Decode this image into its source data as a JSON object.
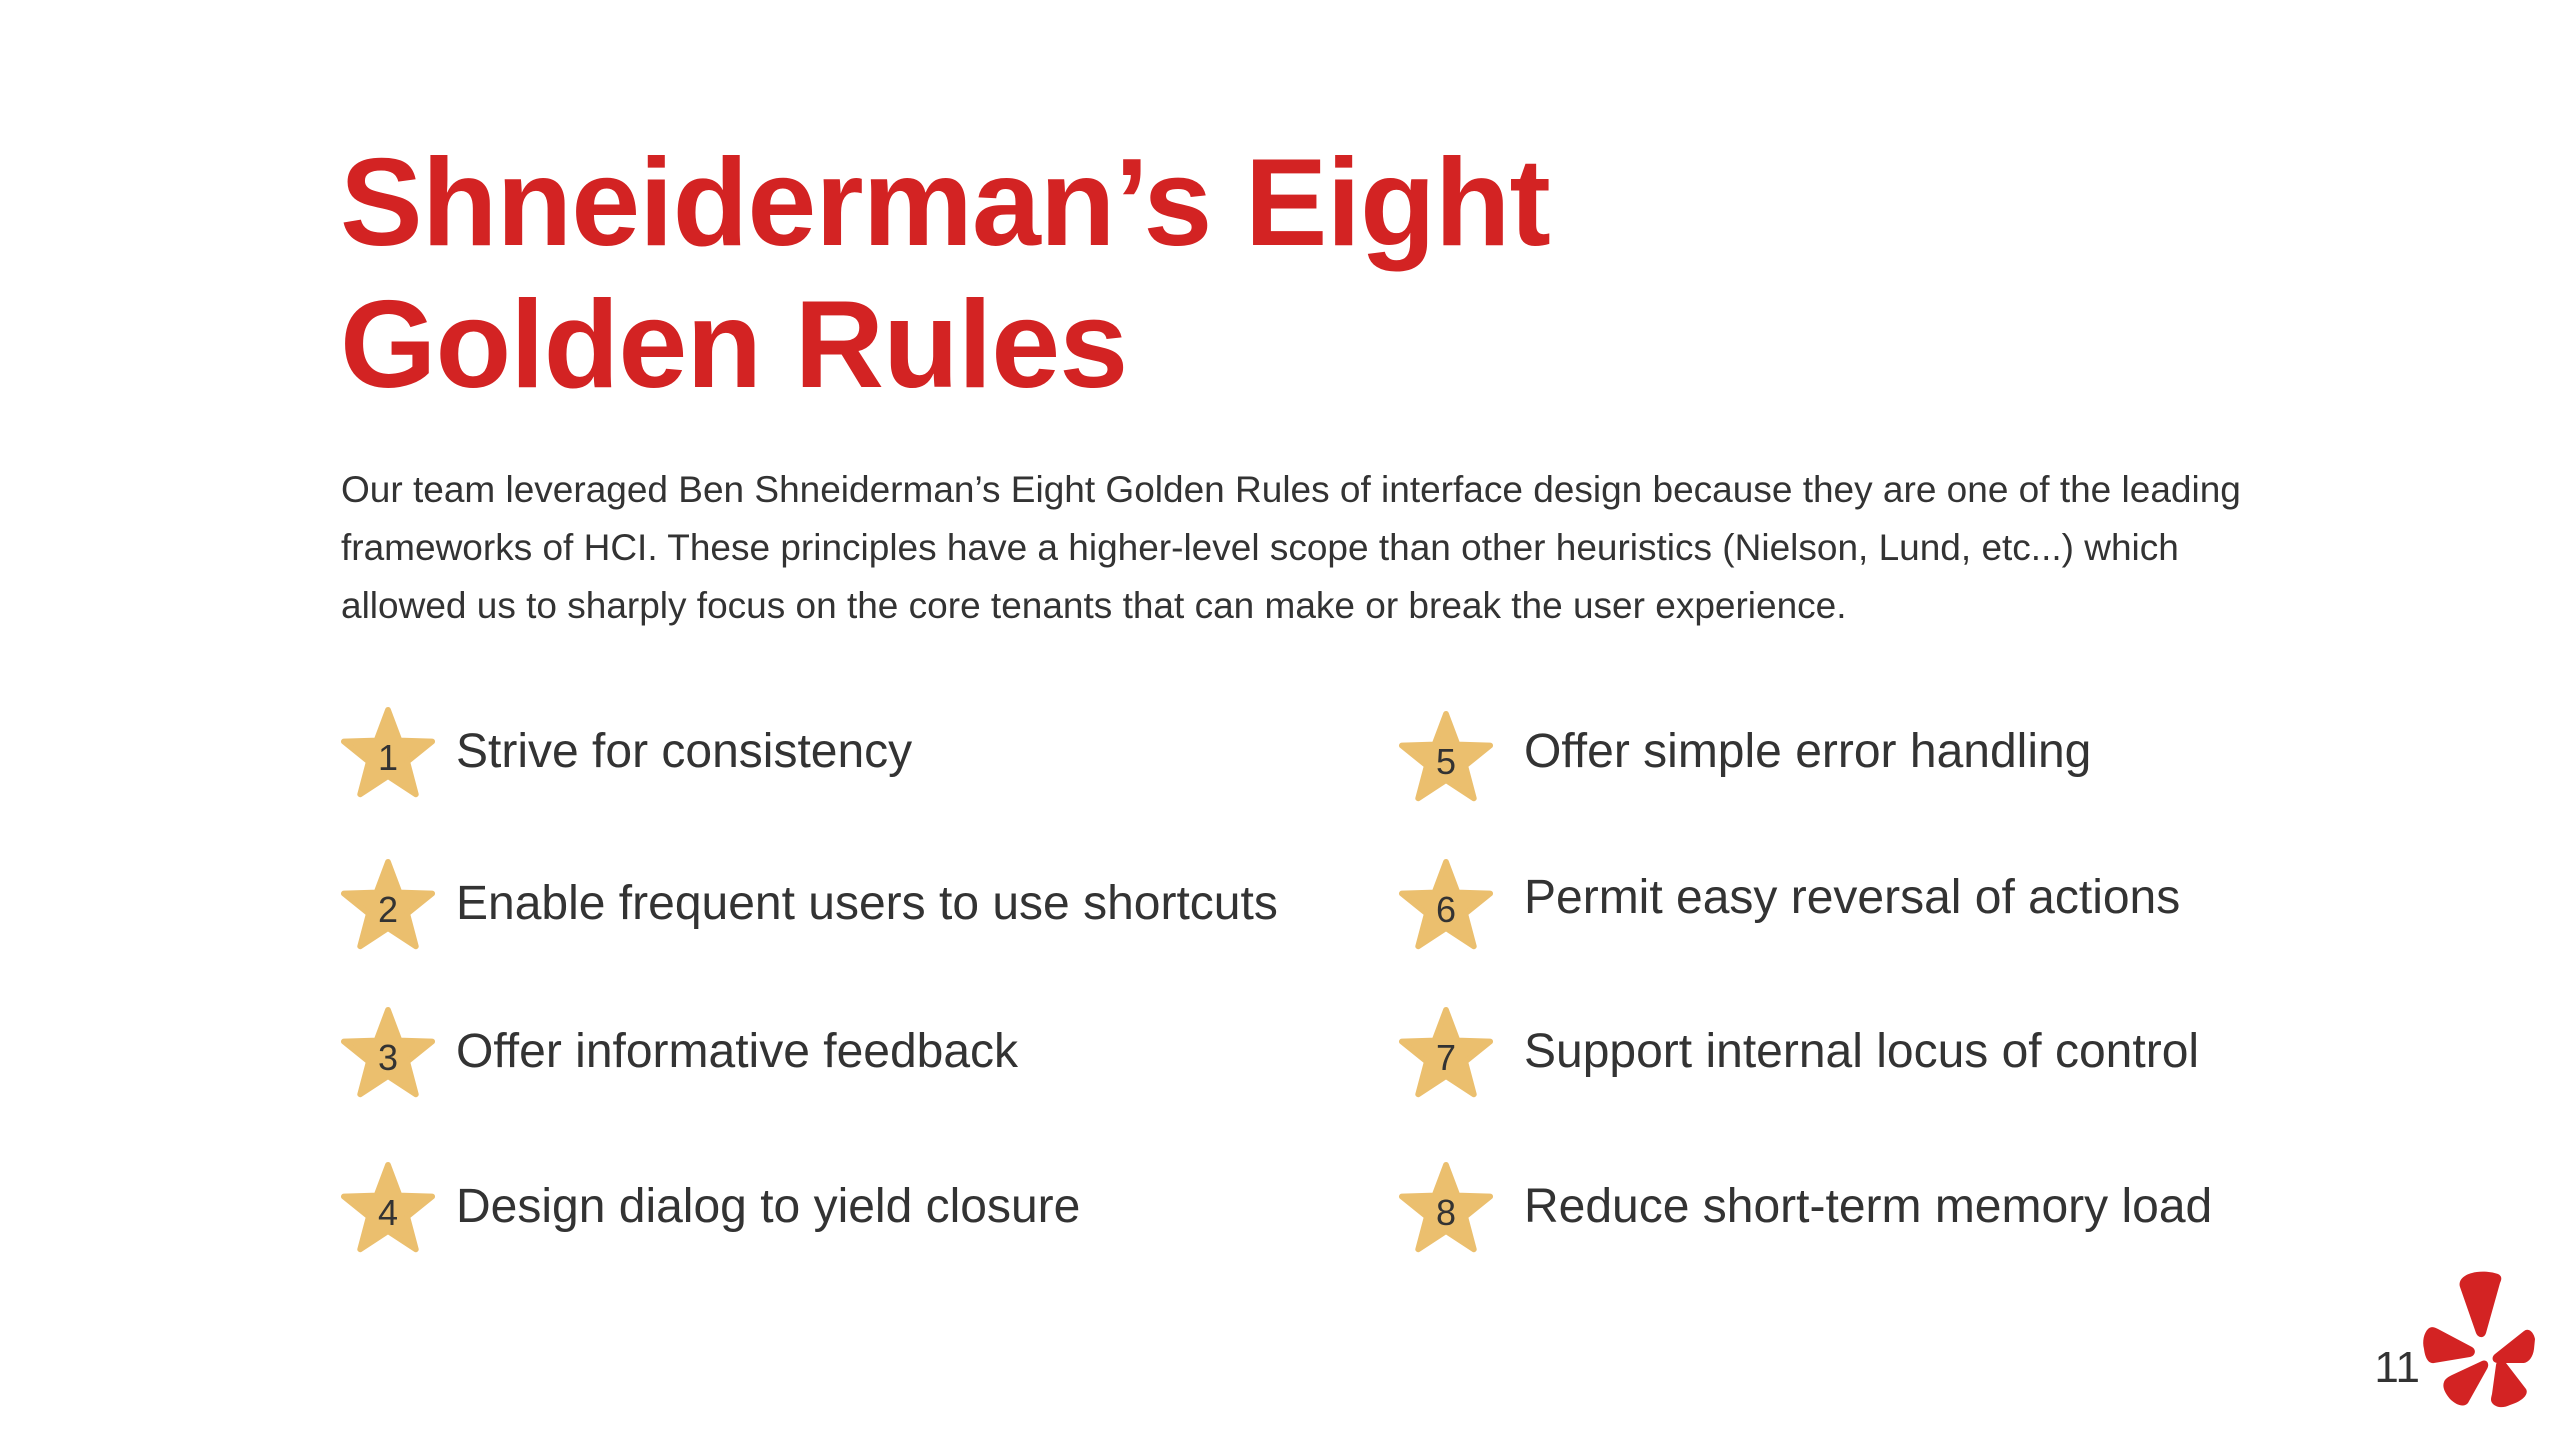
{
  "title": {
    "line1": "Shneiderman’s Eight",
    "line2": "Golden Rules"
  },
  "intro": "Our team leveraged Ben Shneiderman’s Eight Golden Rules of interface design because they are one of the leading frameworks of HCI. These principles have a higher-level scope than other heuristics (Nielson, Lund, etc...) which allowed us to sharply focus on the core tenants that can make or break the user experience.",
  "rules": [
    {
      "number": "1",
      "text": "Strive for consistency"
    },
    {
      "number": "2",
      "text": "Enable frequent users to use shortcuts"
    },
    {
      "number": "3",
      "text": "Offer informative feedback"
    },
    {
      "number": "4",
      "text": "Design dialog to yield closure"
    },
    {
      "number": "5",
      "text": "Offer simple error handling"
    },
    {
      "number": "6",
      "text": "Permit easy reversal of actions"
    },
    {
      "number": "7",
      "text": "Support internal locus of control"
    },
    {
      "number": "8",
      "text": "Reduce short-term memory load"
    }
  ],
  "page_number": "11",
  "icons": {
    "rule_marker": "star-icon",
    "logo": "yelp-burst-logo"
  },
  "colors": {
    "title": "#d32323",
    "text": "#333333",
    "star": "#ebbf6e",
    "logo": "#d32323",
    "background": "#ffffff"
  }
}
